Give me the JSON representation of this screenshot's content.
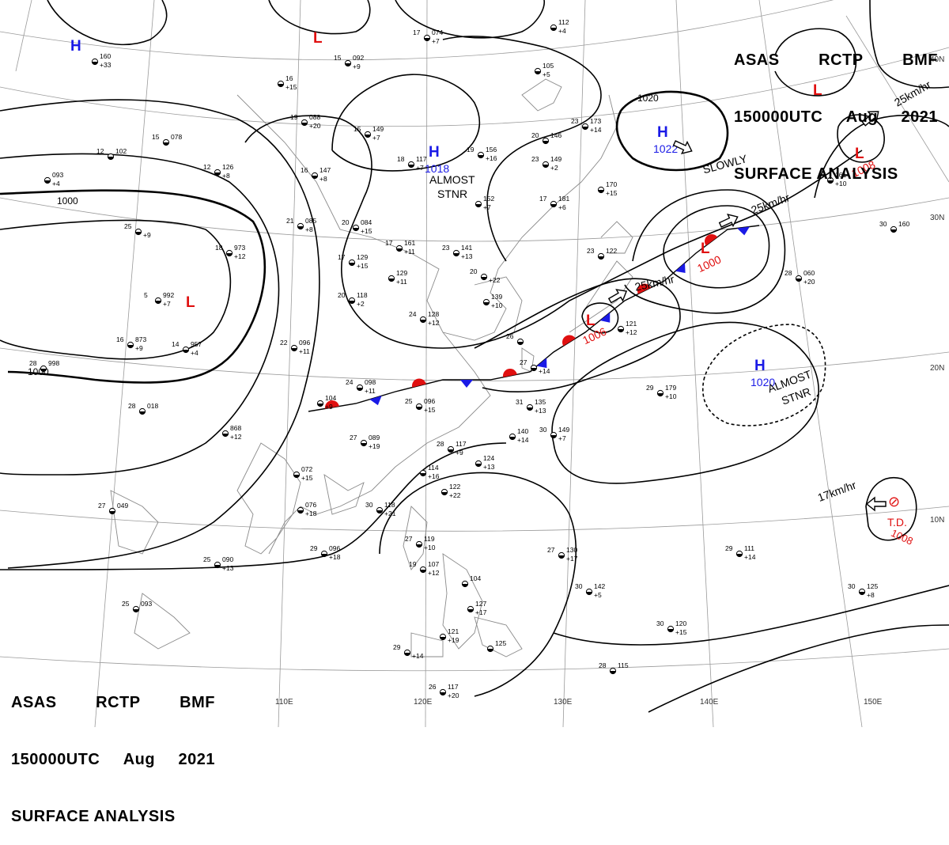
{
  "title": {
    "line1": [
      "ASAS",
      "RCTP",
      "BMF"
    ],
    "line2": [
      "150000UTC",
      "Aug",
      "2021"
    ],
    "line3": "SURFACE ANALYSIS"
  },
  "colors": {
    "high": "#1a1ae6",
    "low": "#e01010",
    "front_cold": "#1a1ae6",
    "front_warm": "#e01010",
    "isobar": "#000000",
    "coast": "#8a8a8a"
  },
  "grid": {
    "lon_labels": [
      "110E",
      "120E",
      "130E",
      "140E",
      "150E"
    ],
    "lat_labels": [
      "40N",
      "30N",
      "20N",
      "10N"
    ]
  },
  "pressure_centers": [
    {
      "type": "H",
      "value": ""
    },
    {
      "type": "L",
      "value": ""
    },
    {
      "type": "H",
      "value": "1018"
    },
    {
      "type": "H",
      "value": "1022"
    },
    {
      "type": "L",
      "value": ""
    },
    {
      "type": "L",
      "value": "1008"
    },
    {
      "type": "L",
      "value": ""
    },
    {
      "type": "L",
      "value": "1000"
    },
    {
      "type": "L",
      "value": "1006"
    },
    {
      "type": "H",
      "value": "1020"
    },
    {
      "type": "TD",
      "value": "1008",
      "label": "T.D."
    }
  ],
  "isobar_labels": [
    "1000",
    "1000",
    "1020"
  ],
  "annotations": {
    "almost_stnr_1": [
      "ALMOST",
      "STNR"
    ],
    "almost_stnr_2": [
      "ALMOST",
      "STNR"
    ],
    "slowly": "SLOWLY",
    "speed_1": "25km/hr",
    "speed_2": "25km/hr",
    "speed_3": "25km/hr",
    "speed_4": "17km/hr"
  },
  "station_reports": [
    {
      "temp": "17",
      "pres": "074",
      "tend": "+7"
    },
    {
      "temp": "15",
      "pres": "092",
      "tend": "+9"
    },
    {
      "temp": "",
      "pres": "112",
      "tend": "+4"
    },
    {
      "temp": "",
      "pres": "105",
      "tend": "+5"
    },
    {
      "temp": "",
      "pres": "160",
      "tend": "+33"
    },
    {
      "temp": "",
      "pres": "16",
      "tend": "+15"
    },
    {
      "temp": "19",
      "pres": "088",
      "tend": "+20"
    },
    {
      "temp": "15",
      "pres": "149",
      "tend": "+7"
    },
    {
      "temp": "20",
      "pres": "146",
      "tend": ""
    },
    {
      "temp": "23",
      "pres": "173",
      "tend": "+14"
    },
    {
      "temp": "15",
      "pres": "078",
      "tend": ""
    },
    {
      "temp": "12",
      "pres": "102",
      "tend": ""
    },
    {
      "temp": "",
      "pres": "093",
      "tend": "+4"
    },
    {
      "temp": "12",
      "pres": "126",
      "tend": "+8"
    },
    {
      "temp": "16",
      "pres": "147",
      "tend": "+8"
    },
    {
      "temp": "18",
      "pres": "117",
      "tend": "+7"
    },
    {
      "temp": "19",
      "pres": "156",
      "tend": "+16"
    },
    {
      "temp": "23",
      "pres": "149",
      "tend": "+2"
    },
    {
      "temp": "17",
      "pres": "181",
      "tend": "+6"
    },
    {
      "temp": "",
      "pres": "170",
      "tend": "+15"
    },
    {
      "temp": "",
      "pres": "161",
      "tend": "+10"
    },
    {
      "temp": "30",
      "pres": "160",
      "tend": ""
    },
    {
      "temp": "21",
      "pres": "085",
      "tend": "+8"
    },
    {
      "temp": "20",
      "pres": "084",
      "tend": "+15"
    },
    {
      "temp": "",
      "pres": "152",
      "tend": "+7"
    },
    {
      "temp": "25",
      "pres": "",
      "tend": "+9"
    },
    {
      "temp": "18",
      "pres": "973",
      "tend": "+12"
    },
    {
      "temp": "17",
      "pres": "161",
      "tend": "+11"
    },
    {
      "temp": "23",
      "pres": "141",
      "tend": "+13"
    },
    {
      "temp": "20",
      "pres": "",
      "tend": "+22"
    },
    {
      "temp": "23",
      "pres": "122",
      "tend": ""
    },
    {
      "temp": "17",
      "pres": "129",
      "tend": "+15"
    },
    {
      "temp": "",
      "pres": "129",
      "tend": "+11"
    },
    {
      "temp": "5",
      "pres": "992",
      "tend": "+7"
    },
    {
      "temp": "20",
      "pres": "118",
      "tend": "+2"
    },
    {
      "temp": "",
      "pres": "139",
      "tend": "+10"
    },
    {
      "temp": "28",
      "pres": "060",
      "tend": "+20"
    },
    {
      "temp": "24",
      "pres": "128",
      "tend": "+12"
    },
    {
      "temp": "",
      "pres": "121",
      "tend": "+12"
    },
    {
      "temp": "16",
      "pres": "873",
      "tend": "+9"
    },
    {
      "temp": "14",
      "pres": "957",
      "tend": "+4"
    },
    {
      "temp": "22",
      "pres": "096",
      "tend": "+11"
    },
    {
      "temp": "26",
      "pres": "",
      "tend": ""
    },
    {
      "temp": "27",
      "pres": "",
      "tend": "+14"
    },
    {
      "temp": "28",
      "pres": "998",
      "tend": ""
    },
    {
      "temp": "24",
      "pres": "098",
      "tend": "+11"
    },
    {
      "temp": "25",
      "pres": "096",
      "tend": "+15"
    },
    {
      "temp": "29",
      "pres": "179",
      "tend": "+10"
    },
    {
      "temp": "",
      "pres": "104",
      "tend": "+9"
    },
    {
      "temp": "31",
      "pres": "135",
      "tend": "+13"
    },
    {
      "temp": "28",
      "pres": "018",
      "tend": ""
    },
    {
      "temp": "",
      "pres": "868",
      "tend": "+12"
    },
    {
      "temp": "27",
      "pres": "089",
      "tend": "+19"
    },
    {
      "temp": "28",
      "pres": "117",
      "tend": "+9"
    },
    {
      "temp": "",
      "pres": "140",
      "tend": "+14"
    },
    {
      "temp": "30",
      "pres": "149",
      "tend": "+7"
    },
    {
      "temp": "",
      "pres": "124",
      "tend": "+13"
    },
    {
      "temp": "",
      "pres": "072",
      "tend": "+15"
    },
    {
      "temp": "",
      "pres": "114",
      "tend": "+16"
    },
    {
      "temp": "",
      "pres": "122",
      "tend": "+22"
    },
    {
      "temp": "",
      "pres": "076",
      "tend": "+18"
    },
    {
      "temp": "30",
      "pres": "118",
      "tend": "+21"
    },
    {
      "temp": "27",
      "pres": "049",
      "tend": ""
    },
    {
      "temp": "29",
      "pres": "096",
      "tend": "+18"
    },
    {
      "temp": "27",
      "pres": "119",
      "tend": "+10"
    },
    {
      "temp": "19",
      "pres": "107",
      "tend": "+12"
    },
    {
      "temp": "27",
      "pres": "130",
      "tend": "+17"
    },
    {
      "temp": "",
      "pres": "104",
      "tend": ""
    },
    {
      "temp": "25",
      "pres": "090",
      "tend": "+13"
    },
    {
      "temp": "29",
      "pres": "111",
      "tend": "+14"
    },
    {
      "temp": "30",
      "pres": "142",
      "tend": "+5"
    },
    {
      "temp": "",
      "pres": "127",
      "tend": "+17"
    },
    {
      "temp": "30",
      "pres": "125",
      "tend": "+8"
    },
    {
      "temp": "25",
      "pres": "093",
      "tend": ""
    },
    {
      "temp": "30",
      "pres": "120",
      "tend": "+15"
    },
    {
      "temp": "",
      "pres": "121",
      "tend": "+19"
    },
    {
      "temp": "",
      "pres": "125",
      "tend": ""
    },
    {
      "temp": "29",
      "pres": "",
      "tend": "+14"
    },
    {
      "temp": "28",
      "pres": "115",
      "tend": ""
    },
    {
      "temp": "26",
      "pres": "117",
      "tend": "+20"
    }
  ]
}
